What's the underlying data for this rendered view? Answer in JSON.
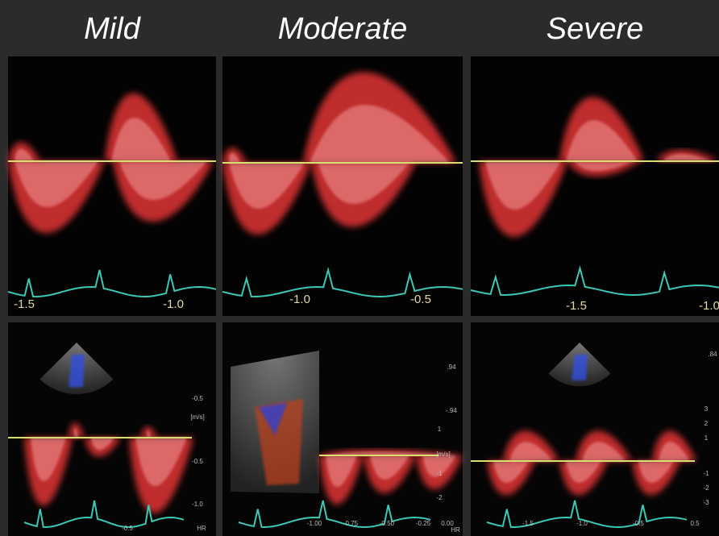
{
  "panels": [
    {
      "title": "Mild",
      "top_scale": [
        "-1.5",
        "-1.0"
      ],
      "bottom_scale": [
        "-0.5",
        "[m/s]",
        "-0.5",
        "-1.0",
        "-0.5",
        "HR"
      ]
    },
    {
      "title": "Moderate",
      "top_scale": [
        "-1.0",
        "-0.5"
      ],
      "bottom_scale": [
        ".94",
        "-.94",
        "1",
        "[m/s]",
        "-1",
        "-2",
        "-1.00",
        "-0.75",
        "-0.50",
        "-0.25",
        "0.00",
        "HR"
      ]
    },
    {
      "title": "Severe",
      "top_scale": [
        "-1.5",
        "-1.0"
      ],
      "bottom_scale": [
        ".84",
        "3",
        "2",
        "1",
        "-1",
        "-2",
        "-3",
        "-1.5",
        "-1.0",
        "-0.5",
        "0.5"
      ]
    }
  ]
}
